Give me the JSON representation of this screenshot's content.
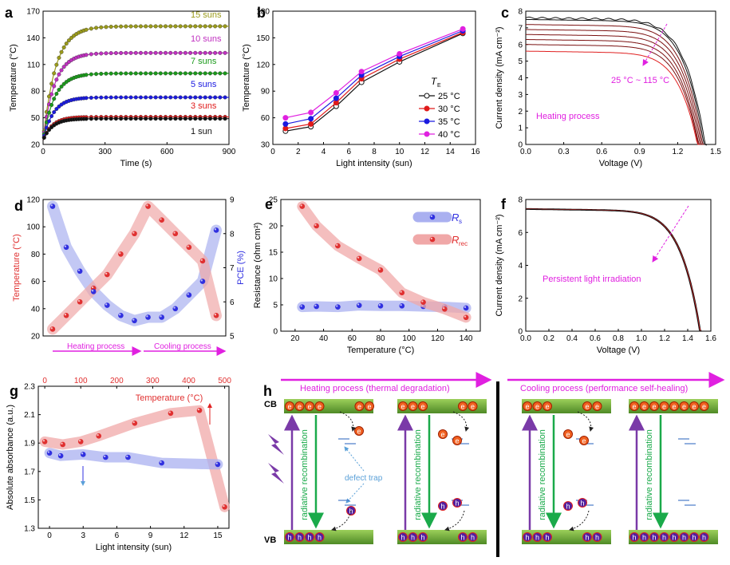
{
  "chart_data": [
    {
      "panel": "a",
      "type": "line",
      "xlabel": "Time (s)",
      "ylabel": "Temperature (°C)",
      "xlim": [
        0,
        900
      ],
      "ylim": [
        20,
        170
      ],
      "xticks": [
        0,
        300,
        600,
        900
      ],
      "yticks": [
        20,
        50,
        80,
        110,
        140,
        170
      ],
      "series": [
        {
          "name": "15 suns",
          "color": "#9b9b1a",
          "plateau": 153,
          "tau": 60
        },
        {
          "name": "10 suns",
          "color": "#c030c0",
          "plateau": 123,
          "tau": 55
        },
        {
          "name": "7 suns",
          "color": "#1a9a1a",
          "plateau": 100,
          "tau": 55
        },
        {
          "name": "5 suns",
          "color": "#1a1ae0",
          "plateau": 73,
          "tau": 50
        },
        {
          "name": "3 suns",
          "color": "#e01a1a",
          "plateau": 51,
          "tau": 45
        },
        {
          "name": "1 sun",
          "color": "#111111",
          "plateau": 49,
          "tau": 45
        }
      ]
    },
    {
      "panel": "b",
      "type": "line",
      "xlabel": "Light intensity (sun)",
      "ylabel": "Temperature (°C)",
      "xlim": [
        0,
        16
      ],
      "ylim": [
        30,
        180
      ],
      "xticks": [
        0,
        2,
        4,
        6,
        8,
        10,
        12,
        14,
        16
      ],
      "yticks": [
        30,
        60,
        90,
        120,
        150,
        180
      ],
      "legend_title": "T",
      "legend_title_sub": "E",
      "x": [
        1,
        3,
        5,
        7,
        10,
        15
      ],
      "series": [
        {
          "name": "25 °C",
          "color": "#111111",
          "values": [
            45,
            50,
            73,
            100,
            123,
            155
          ]
        },
        {
          "name": "30 °C",
          "color": "#e01a1a",
          "values": [
            48,
            53,
            77,
            104,
            126,
            156
          ]
        },
        {
          "name": "35 °C",
          "color": "#1a1ae0",
          "values": [
            53,
            59,
            82,
            108,
            129,
            158
          ]
        },
        {
          "name": "40 °C",
          "color": "#e020e0",
          "values": [
            60,
            66,
            88,
            112,
            132,
            160
          ]
        }
      ]
    },
    {
      "panel": "c",
      "type": "line",
      "xlabel": "Voltage (V)",
      "ylabel": "Current density (mA cm⁻²)",
      "xlim": [
        0,
        1.5
      ],
      "ylim": [
        0,
        8
      ],
      "xticks": [
        0.0,
        0.3,
        0.6,
        0.9,
        1.2,
        1.5
      ],
      "yticks": [
        0,
        1,
        2,
        3,
        4,
        5,
        6,
        7,
        8
      ],
      "annotations": [
        "25 °C ~ 115 °C",
        "Heating process"
      ],
      "curves": [
        {
          "jsc": 7.6,
          "voc": 1.42
        },
        {
          "jsc": 7.5,
          "voc": 1.41
        },
        {
          "jsc": 7.2,
          "voc": 1.4
        },
        {
          "jsc": 6.9,
          "voc": 1.39
        },
        {
          "jsc": 6.6,
          "voc": 1.38
        },
        {
          "jsc": 6.3,
          "voc": 1.37
        },
        {
          "jsc": 6.0,
          "voc": 1.365
        },
        {
          "jsc": 5.6,
          "voc": 1.36
        }
      ]
    },
    {
      "panel": "d",
      "type": "scatter",
      "xlabels": [
        "Heating process",
        "Cooling process"
      ],
      "ylabel_left": "Temperature (°C)",
      "ylabel_right": "PCE (%)",
      "ylim_left": [
        20,
        120
      ],
      "yticks_left": [
        20,
        40,
        60,
        80,
        100,
        120
      ],
      "ylim_right": [
        5,
        9
      ],
      "yticks_right": [
        5,
        6,
        7,
        8,
        9
      ],
      "index": [
        0,
        1,
        2,
        3,
        4,
        5,
        6,
        7,
        8,
        9,
        10,
        11,
        12
      ],
      "temperature": [
        25,
        35,
        45,
        55,
        65,
        80,
        95,
        115,
        105,
        95,
        85,
        75,
        35
      ],
      "pce": [
        8.8,
        7.6,
        6.9,
        6.3,
        5.9,
        5.6,
        5.45,
        5.55,
        5.55,
        5.8,
        6.2,
        6.6,
        8.1
      ],
      "colors": {
        "temperature": "#e03030",
        "pce": "#3030e0"
      }
    },
    {
      "panel": "e",
      "type": "scatter",
      "xlabel": "Temperature (°C)",
      "ylabel": "Resistance (ohm cm²)",
      "xlim": [
        10,
        150
      ],
      "ylim": [
        0,
        25
      ],
      "xticks": [
        20,
        40,
        60,
        80,
        100,
        120,
        140
      ],
      "yticks": [
        0,
        5,
        10,
        15,
        20,
        25
      ],
      "series": [
        {
          "name": "R",
          "sub": "s",
          "color": "#3030e0",
          "x": [
            25,
            35,
            50,
            65,
            80,
            95,
            110,
            125,
            140
          ],
          "values": [
            4.6,
            4.7,
            4.6,
            4.9,
            4.8,
            4.8,
            4.7,
            4.6,
            4.4
          ]
        },
        {
          "name": "R",
          "sub": "rec",
          "color": "#e03030",
          "x": [
            25,
            35,
            50,
            65,
            80,
            95,
            110,
            125,
            140
          ],
          "values": [
            23.7,
            20.0,
            16.2,
            13.8,
            11.6,
            7.3,
            5.5,
            4.2,
            2.6
          ]
        }
      ]
    },
    {
      "panel": "f",
      "type": "line",
      "xlabel": "Voltage (V)",
      "ylabel": "Current density (mA cm⁻²)",
      "xlim": [
        0,
        1.6
      ],
      "ylim": [
        0,
        8
      ],
      "xticks": [
        0.0,
        0.2,
        0.4,
        0.6,
        0.8,
        1.0,
        1.2,
        1.4,
        1.6
      ],
      "yticks": [
        0,
        2,
        4,
        6,
        8
      ],
      "annotations": [
        "Persistent light irradiation"
      ],
      "curves": [
        {
          "jsc": 7.45,
          "voc": 1.515
        },
        {
          "jsc": 7.42,
          "voc": 1.51
        },
        {
          "jsc": 7.4,
          "voc": 1.505
        }
      ]
    },
    {
      "panel": "g",
      "type": "scatter",
      "xlabel": "Light intensity (sun)",
      "ylabel": "Absolute absorbance (a.u.)",
      "x2label": "Temperature (°C)",
      "xlim": [
        -1,
        16
      ],
      "ylim": [
        1.3,
        2.3
      ],
      "xticks": [
        0,
        3,
        6,
        9,
        12,
        15
      ],
      "yticks": [
        1.3,
        1.5,
        1.7,
        1.9,
        2.1,
        2.3
      ],
      "x2lim": [
        0,
        500
      ],
      "x2ticks": [
        0,
        100,
        200,
        300,
        400,
        500
      ],
      "series": [
        {
          "name": "Temperature (°C)",
          "color": "#e03030",
          "axis": "top",
          "x": [
            0,
            50,
            100,
            150,
            250,
            350,
            430,
            500
          ],
          "values": [
            1.91,
            1.89,
            1.91,
            1.95,
            2.04,
            2.11,
            2.13,
            1.45
          ]
        },
        {
          "name": "Light intensity",
          "color": "#3030e0",
          "axis": "bottom",
          "x": [
            0,
            1,
            3,
            5,
            7,
            10,
            15
          ],
          "values": [
            1.83,
            1.81,
            1.82,
            1.8,
            1.8,
            1.76,
            1.75
          ]
        }
      ]
    },
    {
      "panel": "h",
      "type": "diagram",
      "heating_title": "Heating process (thermal degradation)",
      "cooling_title": "Cooling process (performance self-healing)",
      "cb": "CB",
      "vb": "VB",
      "radiative": "radiative recombination",
      "defect_trap": "defect trap",
      "electron": "e",
      "hole": "h"
    }
  ],
  "labels": {
    "a": "a",
    "b": "b",
    "c": "c",
    "d": "d",
    "e": "e",
    "f": "f",
    "g": "g",
    "h": "h"
  }
}
